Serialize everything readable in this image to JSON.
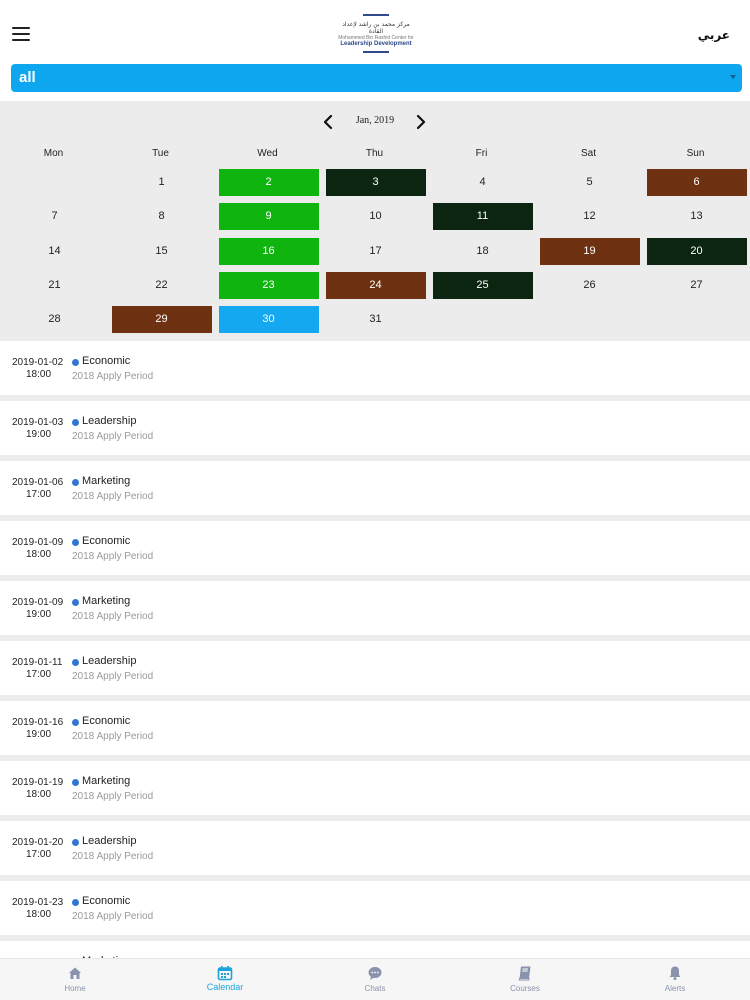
{
  "header": {
    "logo_arabic": "مركز محمد بن راشد لإعداد القادة",
    "logo_line1": "Mohammed Bin Rashid Center for",
    "logo_line2": "Leadership Development",
    "language_label": "عربي"
  },
  "filter": {
    "value": "all"
  },
  "calendar": {
    "month_label": "Jan, 2019",
    "weekdays": [
      "Mon",
      "Tue",
      "Wed",
      "Thu",
      "Fri",
      "Sat",
      "Sun"
    ],
    "colors": {
      "green": "#0fb40f",
      "dark": "#0b2510",
      "brown": "#6e3212",
      "blue": "#14a8f0"
    },
    "days": [
      {
        "label": "1",
        "status": ""
      },
      {
        "label": "2",
        "status": "green"
      },
      {
        "label": "3",
        "status": "dark"
      },
      {
        "label": "4",
        "status": ""
      },
      {
        "label": "5",
        "status": ""
      },
      {
        "label": "6",
        "status": "brown"
      },
      {
        "label": "7",
        "status": ""
      },
      {
        "label": "8",
        "status": ""
      },
      {
        "label": "9",
        "status": "green"
      },
      {
        "label": "10",
        "status": ""
      },
      {
        "label": "11",
        "status": "dark"
      },
      {
        "label": "12",
        "status": ""
      },
      {
        "label": "13",
        "status": ""
      },
      {
        "label": "14",
        "status": ""
      },
      {
        "label": "15",
        "status": ""
      },
      {
        "label": "16",
        "status": "green"
      },
      {
        "label": "17",
        "status": ""
      },
      {
        "label": "18",
        "status": ""
      },
      {
        "label": "19",
        "status": "brown"
      },
      {
        "label": "20",
        "status": "dark"
      },
      {
        "label": "21",
        "status": ""
      },
      {
        "label": "22",
        "status": ""
      },
      {
        "label": "23",
        "status": "green"
      },
      {
        "label": "24",
        "status": "brown"
      },
      {
        "label": "25",
        "status": "dark"
      },
      {
        "label": "26",
        "status": ""
      },
      {
        "label": "27",
        "status": ""
      },
      {
        "label": "28",
        "status": ""
      },
      {
        "label": "29",
        "status": "brown"
      },
      {
        "label": "30",
        "status": "blue"
      },
      {
        "label": "31",
        "status": ""
      }
    ]
  },
  "events": [
    {
      "date": "2019-01-02",
      "time": "18:00",
      "title": "Economic",
      "subtitle": "2018 Apply Period"
    },
    {
      "date": "2019-01-03",
      "time": "19:00",
      "title": "Leadership",
      "subtitle": "2018 Apply Period"
    },
    {
      "date": "2019-01-06",
      "time": "17:00",
      "title": "Marketing",
      "subtitle": "2018 Apply Period"
    },
    {
      "date": "2019-01-09",
      "time": "18:00",
      "title": "Economic",
      "subtitle": "2018 Apply Period"
    },
    {
      "date": "2019-01-09",
      "time": "19:00",
      "title": "Marketing",
      "subtitle": "2018 Apply Period"
    },
    {
      "date": "2019-01-11",
      "time": "17:00",
      "title": "Leadership",
      "subtitle": "2018 Apply Period"
    },
    {
      "date": "2019-01-16",
      "time": "19:00",
      "title": "Economic",
      "subtitle": "2018 Apply Period"
    },
    {
      "date": "2019-01-19",
      "time": "18:00",
      "title": "Marketing",
      "subtitle": "2018 Apply Period"
    },
    {
      "date": "2019-01-20",
      "time": "17:00",
      "title": "Leadership",
      "subtitle": "2018 Apply Period"
    },
    {
      "date": "2019-01-23",
      "time": "18:00",
      "title": "Economic",
      "subtitle": "2018 Apply Period"
    },
    {
      "date": "",
      "time": "",
      "title": "Marketing",
      "subtitle": ""
    }
  ],
  "tabbar": {
    "active_color": "#1fa3dd",
    "inactive_color": "#8a93ad",
    "tabs": [
      {
        "label": "Home",
        "icon": "home-icon",
        "active": false
      },
      {
        "label": "Calendar",
        "icon": "calendar-icon",
        "active": true
      },
      {
        "label": "Chats",
        "icon": "chat-icon",
        "active": false
      },
      {
        "label": "Courses",
        "icon": "book-icon",
        "active": false
      },
      {
        "label": "Alerts",
        "icon": "bell-icon",
        "active": false
      }
    ]
  }
}
